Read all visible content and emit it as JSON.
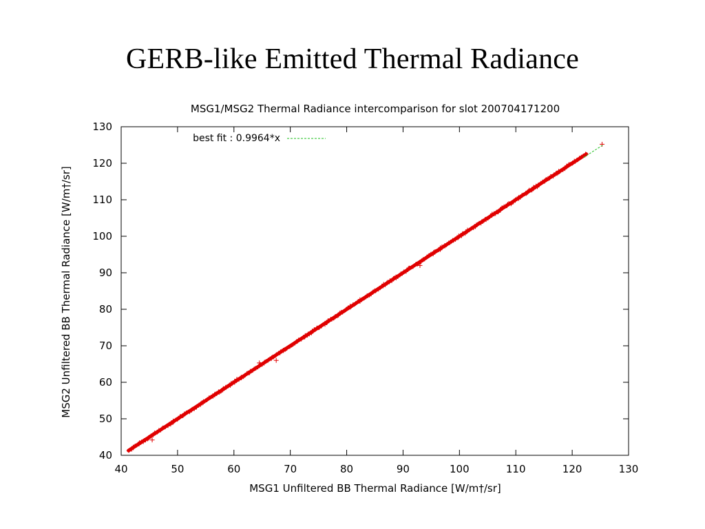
{
  "slide": {
    "title": "GERB-like Emitted Thermal  Radiance"
  },
  "chart_data": {
    "type": "scatter",
    "title": "MSG1/MSG2 Thermal Radiance intercomparison for slot 200704171200",
    "xlabel": "MSG1 Unfiltered BB Thermal Radiance [W/m†/sr]",
    "ylabel": "MSG2 Unfiltered BB Thermal Radiance [W/m†/sr]",
    "xlim": [
      40,
      130
    ],
    "ylim": [
      40,
      130
    ],
    "xticks": [
      40,
      50,
      60,
      70,
      80,
      90,
      100,
      110,
      120,
      130
    ],
    "yticks": [
      40,
      50,
      60,
      70,
      80,
      90,
      100,
      110,
      120,
      130
    ],
    "grid": false,
    "legend_position": "top-left",
    "series": [
      {
        "name": "",
        "type": "scatter",
        "marker": "+",
        "color": "#e00000",
        "x_range": [
          41.3,
          122.5
        ],
        "slope": 1.0,
        "outliers": [
          {
            "x": 125.3,
            "y": 125.2
          },
          {
            "x": 45.5,
            "y": 44.2
          },
          {
            "x": 60.5,
            "y": 60.8
          },
          {
            "x": 64.5,
            "y": 65.3
          },
          {
            "x": 67.5,
            "y": 66.0
          },
          {
            "x": 93.0,
            "y": 92.0
          }
        ]
      },
      {
        "name": "best fit : 0.9964*x",
        "type": "line",
        "style": "dashed",
        "color": "#22c022",
        "slope": 0.9964,
        "x_range": [
          41.3,
          125.5
        ]
      }
    ]
  }
}
